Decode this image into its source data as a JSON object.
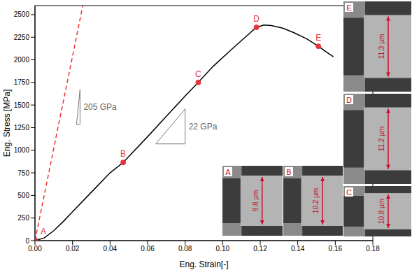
{
  "chart_data": {
    "type": "line",
    "xlabel": "Eng. Strain[-]",
    "ylabel": "Eng. Stress [MPa]",
    "xlim": [
      0,
      0.18
    ],
    "xticks": [
      {
        "value": 0,
        "label": "0.00"
      },
      {
        "value": 0.02,
        "label": "0.02"
      },
      {
        "value": 0.04,
        "label": "0.04"
      },
      {
        "value": 0.06,
        "label": "0.06"
      },
      {
        "value": 0.08,
        "label": "0.08"
      },
      {
        "value": 0.1,
        "label": "0.10"
      },
      {
        "value": 0.12,
        "label": "0.12"
      },
      {
        "value": 0.14,
        "label": "0.14"
      },
      {
        "value": 0.16,
        "label": "0.16"
      },
      {
        "value": 0.18,
        "label": "0.18"
      }
    ],
    "ylim": [
      0,
      2600
    ],
    "yticks": [
      0,
      250,
      500,
      750,
      1000,
      1250,
      1500,
      1750,
      2000,
      2250,
      2500
    ],
    "series": [
      {
        "type": "line",
        "color": "#000000",
        "line_style": "solid",
        "x": [
          0,
          0.005,
          0.01,
          0.015,
          0.02,
          0.03,
          0.04,
          0.047,
          0.06,
          0.07,
          0.08,
          0.087,
          0.095,
          0.105,
          0.112,
          0.118,
          0.122,
          0.126,
          0.132,
          0.138,
          0.145,
          0.151,
          0.155,
          0.159
        ],
        "values": [
          0,
          30,
          110,
          210,
          320,
          535,
          750,
          865,
          1150,
          1375,
          1600,
          1750,
          1930,
          2120,
          2250,
          2360,
          2385,
          2380,
          2350,
          2300,
          2230,
          2150,
          2090,
          2035
        ]
      },
      {
        "type": "line",
        "color": "#ee3333",
        "line_style": "dashed",
        "x": [
          0,
          0.0255
        ],
        "values": [
          0,
          2600
        ]
      },
      {
        "type": "scatter",
        "color": "#e8323c",
        "marker": "circle",
        "x": [
          0,
          0.047,
          0.087,
          0.118,
          0.151
        ],
        "values": [
          10,
          865,
          1750,
          2360,
          2150
        ],
        "labels": [
          "A",
          "B",
          "C",
          "D",
          "E"
        ]
      }
    ],
    "annotations": [
      {
        "text": "205 GPa",
        "x": 0.024,
        "y": 1285
      },
      {
        "text": "22 GPa",
        "x": 0.08,
        "y": 1070
      }
    ],
    "insets": [
      {
        "label": "A",
        "width_text": "9.8 µm"
      },
      {
        "label": "B",
        "width_text": "10.2 µm"
      },
      {
        "label": "C",
        "width_text": "10.8 µm"
      },
      {
        "label": "D",
        "width_text": "11.2 µm"
      },
      {
        "label": "E",
        "width_text": "11.3 µm"
      }
    ]
  }
}
